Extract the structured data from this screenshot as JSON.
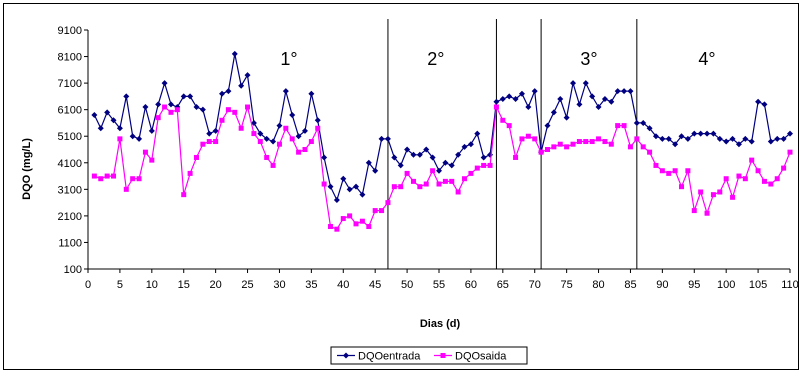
{
  "chart_data": {
    "type": "line",
    "title": "",
    "xlabel": "Dias (d)",
    "ylabel": "DQO (mg/L)",
    "xlim": [
      0,
      110
    ],
    "ylim": [
      100,
      9100
    ],
    "xticks": [
      0,
      5,
      10,
      15,
      20,
      25,
      30,
      35,
      40,
      45,
      50,
      55,
      60,
      65,
      70,
      75,
      80,
      85,
      90,
      95,
      100,
      105,
      110
    ],
    "yticks": [
      100,
      1100,
      2100,
      3100,
      4100,
      5100,
      6100,
      7100,
      8100,
      9100
    ],
    "grid": false,
    "legend_position": "bottom",
    "phase_lines": [
      47,
      64,
      71,
      86
    ],
    "phase_labels": [
      {
        "x": 31.5,
        "text": "1°"
      },
      {
        "x": 54.5,
        "text": "2°"
      },
      {
        "x": 78.5,
        "text": "3°"
      },
      {
        "x": 97,
        "text": "4°"
      }
    ],
    "series": [
      {
        "name": "DQOentrada",
        "color": "#000080",
        "marker": "diamond",
        "x": [
          1,
          2,
          3,
          4,
          5,
          6,
          7,
          8,
          9,
          10,
          11,
          12,
          13,
          14,
          15,
          16,
          17,
          18,
          19,
          20,
          21,
          22,
          23,
          24,
          25,
          26,
          27,
          28,
          29,
          30,
          31,
          32,
          33,
          34,
          35,
          36,
          37,
          38,
          39,
          40,
          41,
          42,
          43,
          44,
          45,
          46,
          47,
          48,
          49,
          50,
          51,
          52,
          53,
          54,
          55,
          56,
          57,
          58,
          59,
          60,
          61,
          62,
          63,
          64,
          65,
          66,
          67,
          68,
          69,
          70,
          71,
          72,
          73,
          74,
          75,
          76,
          77,
          78,
          79,
          80,
          81,
          82,
          83,
          84,
          85,
          86,
          87,
          88,
          89,
          90,
          91,
          92,
          93,
          94,
          95,
          96,
          97,
          98,
          99,
          100,
          101,
          102,
          103,
          104,
          105,
          106,
          107,
          108,
          109,
          110
        ],
        "values": [
          5900,
          5400,
          6000,
          5700,
          5400,
          6600,
          5100,
          5000,
          6200,
          5300,
          6300,
          7100,
          6300,
          6200,
          6600,
          6600,
          6200,
          6100,
          5200,
          5300,
          6700,
          6800,
          8200,
          7000,
          7400,
          5600,
          5200,
          5000,
          4900,
          5500,
          6800,
          5900,
          5100,
          5300,
          6700,
          5700,
          4300,
          3200,
          2700,
          3500,
          3100,
          3200,
          2900,
          4100,
          3800,
          5000,
          5000,
          4300,
          4000,
          4600,
          4400,
          4400,
          4600,
          4300,
          3800,
          4100,
          4000,
          4400,
          4700,
          4800,
          5200,
          4300,
          4400,
          6400,
          6500,
          6600,
          6500,
          6700,
          6200,
          6800,
          4500,
          5500,
          6000,
          6500,
          5800,
          7100,
          6300,
          7100,
          6600,
          6200,
          6500,
          6400,
          6800,
          6800,
          6800,
          5600,
          5600,
          5400,
          5100,
          5000,
          5000,
          4800,
          5100,
          5000,
          5200,
          5200,
          5200,
          5200,
          5000,
          4900,
          5000,
          4800,
          5000,
          4900,
          6400,
          6300,
          4900,
          5000,
          5000,
          5200
        ]
      },
      {
        "name": "DQOsaida",
        "color": "#ff00ff",
        "marker": "square",
        "x": [
          1,
          2,
          3,
          4,
          5,
          6,
          7,
          8,
          9,
          10,
          11,
          12,
          13,
          14,
          15,
          16,
          17,
          18,
          19,
          20,
          21,
          22,
          23,
          24,
          25,
          26,
          27,
          28,
          29,
          30,
          31,
          32,
          33,
          34,
          35,
          36,
          37,
          38,
          39,
          40,
          41,
          42,
          43,
          44,
          45,
          46,
          47,
          48,
          49,
          50,
          51,
          52,
          53,
          54,
          55,
          56,
          57,
          58,
          59,
          60,
          61,
          62,
          63,
          64,
          65,
          66,
          67,
          68,
          69,
          70,
          71,
          72,
          73,
          74,
          75,
          76,
          77,
          78,
          79,
          80,
          81,
          82,
          83,
          84,
          85,
          86,
          87,
          88,
          89,
          90,
          91,
          92,
          93,
          94,
          95,
          96,
          97,
          98,
          99,
          100,
          101,
          102,
          103,
          104,
          105,
          106,
          107,
          108,
          109,
          110
        ],
        "values": [
          3600,
          3500,
          3600,
          3600,
          5000,
          3100,
          3500,
          3500,
          4500,
          4200,
          5800,
          6200,
          6000,
          6100,
          2900,
          3700,
          4300,
          4800,
          4900,
          4900,
          5700,
          6100,
          6000,
          5400,
          6200,
          5200,
          4900,
          4300,
          4000,
          4800,
          5400,
          5000,
          4500,
          4600,
          4900,
          5400,
          3300,
          1700,
          1600,
          2000,
          2100,
          1800,
          1900,
          1700,
          2300,
          2300,
          2600,
          3200,
          3200,
          3700,
          3400,
          3200,
          3300,
          3800,
          3300,
          3400,
          3400,
          3000,
          3500,
          3700,
          3900,
          4000,
          4000,
          6200,
          5700,
          5500,
          4300,
          5000,
          5100,
          5000,
          4500,
          4600,
          4700,
          4800,
          4700,
          4800,
          4900,
          4900,
          4900,
          5000,
          4900,
          4800,
          5500,
          5500,
          4700,
          5000,
          4700,
          4500,
          4000,
          3800,
          3700,
          3800,
          3200,
          3800,
          2300,
          3000,
          2200,
          2900,
          3000,
          3500,
          2800,
          3600,
          3500,
          4200,
          3800,
          3400,
          3300,
          3500,
          3900,
          4500
        ]
      }
    ]
  }
}
